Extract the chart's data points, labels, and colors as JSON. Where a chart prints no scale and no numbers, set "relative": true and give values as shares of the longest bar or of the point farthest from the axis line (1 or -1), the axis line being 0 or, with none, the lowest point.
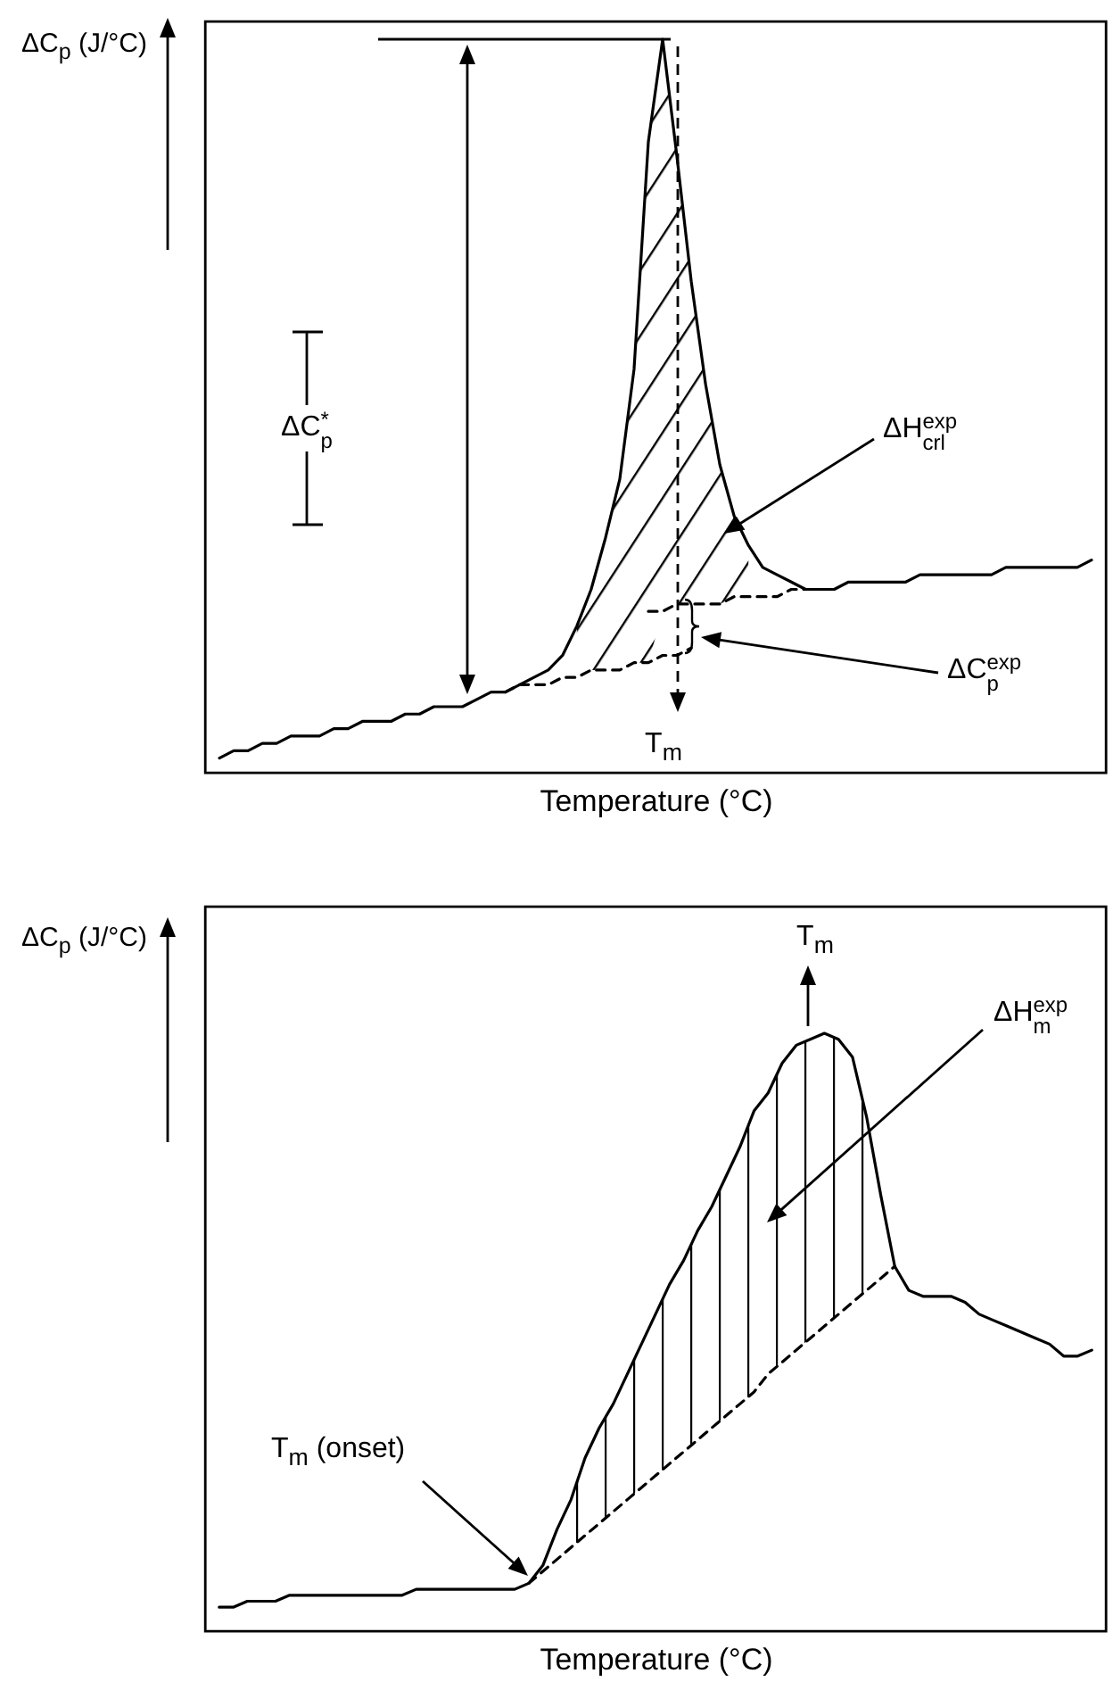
{
  "chart_data": [
    {
      "type": "line",
      "relative": true,
      "tick_labels": false,
      "xlabel": "Temperature (°C)",
      "ylabel": "ΔC$_{p}$ (J/°C)",
      "categories": [
        null,
        null,
        null,
        null,
        null,
        null,
        null,
        null,
        null,
        null,
        null,
        null,
        null,
        null,
        null,
        null,
        null,
        null,
        null,
        null,
        null,
        null,
        null,
        null,
        null,
        null,
        null,
        null,
        null,
        null,
        null,
        null,
        null,
        null,
        null,
        null,
        null,
        null,
        null,
        null,
        null,
        null,
        null,
        null,
        null,
        null,
        null,
        null,
        null,
        null,
        null,
        null,
        null,
        null,
        null,
        null,
        null,
        null,
        null,
        null,
        null,
        null
      ],
      "series": [
        {
          "color": "#000000",
          "line_style": "solid",
          "values": [
            0.02,
            0.03,
            0.03,
            0.04,
            0.04,
            0.05,
            0.05,
            0.05,
            0.06,
            0.06,
            0.07,
            0.07,
            0.07,
            0.08,
            0.08,
            0.09,
            0.09,
            0.09,
            0.1,
            0.11,
            0.11,
            0.12,
            0.13,
            0.14,
            0.16,
            0.2,
            0.25,
            0.32,
            0.4,
            0.55,
            0.86,
            1,
            0.84,
            0.67,
            0.53,
            0.42,
            0.35,
            0.31,
            0.28,
            0.27,
            0.26,
            0.25,
            0.25,
            0.25,
            0.26,
            0.26,
            0.26,
            0.26,
            0.26,
            0.27,
            0.27,
            0.27,
            0.27,
            0.27,
            0.27,
            0.28,
            0.28,
            0.28,
            0.28,
            0.28,
            0.28,
            0.29
          ],
          "lower": [
            null,
            null,
            null,
            null,
            null,
            null,
            null,
            null,
            null,
            null,
            null,
            null,
            null,
            null,
            null,
            null,
            null,
            null,
            null,
            null,
            null,
            null,
            null,
            null,
            null,
            0.13,
            0.14,
            0.14,
            0.14,
            0.15,
            0.15,
            0.22,
            0.23,
            0.23,
            0.23,
            0.23,
            0.24,
            0.24,
            null,
            null,
            null,
            null,
            null,
            null,
            null,
            null,
            null,
            null,
            null,
            null,
            null,
            null,
            null,
            null,
            null,
            null,
            null,
            null,
            null,
            null,
            null,
            null
          ],
          "upper": [
            null,
            null,
            null,
            null,
            null,
            null,
            null,
            null,
            null,
            null,
            null,
            null,
            null,
            null,
            null,
            null,
            null,
            null,
            null,
            null,
            null,
            null,
            null,
            null,
            null,
            0.2,
            0.25,
            0.32,
            0.4,
            0.55,
            0.86,
            1,
            0.84,
            0.67,
            0.53,
            0.42,
            0.35,
            0.31,
            null,
            null,
            null,
            null,
            null,
            null,
            null,
            null,
            null,
            null,
            null,
            null,
            null,
            null,
            null,
            null,
            null,
            null,
            null,
            null,
            null,
            null,
            null,
            null
          ]
        },
        {
          "color": "#000000",
          "line_style": "dashed",
          "values": [
            null,
            null,
            null,
            null,
            null,
            null,
            null,
            null,
            null,
            null,
            null,
            null,
            null,
            null,
            null,
            null,
            null,
            null,
            null,
            null,
            0.11,
            0.12,
            0.12,
            0.12,
            0.13,
            0.13,
            0.14,
            0.14,
            0.14,
            0.15,
            0.15,
            0.16,
            0.16,
            0.17,
            null,
            null,
            null,
            null,
            null,
            null,
            null,
            null,
            null,
            null,
            null,
            null,
            null,
            null,
            null,
            null,
            null,
            null,
            null,
            null,
            null,
            null,
            null,
            null,
            null,
            null,
            null,
            null
          ]
        },
        {
          "color": "#000000",
          "line_style": "dashed",
          "values": [
            null,
            null,
            null,
            null,
            null,
            null,
            null,
            null,
            null,
            null,
            null,
            null,
            null,
            null,
            null,
            null,
            null,
            null,
            null,
            null,
            null,
            null,
            null,
            null,
            null,
            null,
            null,
            null,
            null,
            null,
            0.22,
            0.22,
            0.23,
            0.23,
            0.23,
            0.23,
            0.24,
            0.24,
            0.24,
            0.24,
            0.25,
            0.25,
            0.25,
            null,
            null,
            null,
            null,
            null,
            null,
            null,
            null,
            null,
            null,
            null,
            null,
            null,
            null,
            null,
            null,
            null,
            null,
            null
          ]
        }
      ],
      "annotations": [
        "ΔC$_{p}$$^{*}$",
        "ΔH$_{crl}$$^{exp}$",
        "ΔC$_{p}$$^{exp}$",
        "T$_{m}$"
      ]
    },
    {
      "type": "line",
      "relative": true,
      "tick_labels": false,
      "xlabel": "Temperature (°C)",
      "ylabel": "ΔC$_{p}$ (J/°C)",
      "categories": [
        null,
        null,
        null,
        null,
        null,
        null,
        null,
        null,
        null,
        null,
        null,
        null,
        null,
        null,
        null,
        null,
        null,
        null,
        null,
        null,
        null,
        null,
        null,
        null,
        null,
        null,
        null,
        null,
        null,
        null,
        null,
        null,
        null,
        null,
        null,
        null,
        null,
        null,
        null,
        null,
        null,
        null,
        null,
        null,
        null,
        null,
        null,
        null,
        null,
        null,
        null,
        null,
        null,
        null,
        null,
        null,
        null,
        null,
        null,
        null,
        null,
        null,
        null
      ],
      "series": [
        {
          "color": "#000000",
          "line_style": "solid",
          "values": [
            0.04,
            0.04,
            0.05,
            0.05,
            0.05,
            0.06,
            0.06,
            0.06,
            0.06,
            0.06,
            0.06,
            0.06,
            0.06,
            0.06,
            0.07,
            0.07,
            0.07,
            0.07,
            0.07,
            0.07,
            0.07,
            0.07,
            0.08,
            0.11,
            0.17,
            0.22,
            0.29,
            0.34,
            0.38,
            0.43,
            0.48,
            0.53,
            0.58,
            0.62,
            0.67,
            0.71,
            0.76,
            0.81,
            0.87,
            0.9,
            0.95,
            0.98,
            0.99,
            1,
            0.99,
            0.96,
            0.86,
            0.73,
            0.61,
            0.57,
            0.56,
            0.56,
            0.56,
            0.55,
            0.53,
            0.52,
            0.51,
            0.5,
            0.49,
            0.48,
            0.46,
            0.46,
            0.47
          ],
          "lower": [
            null,
            null,
            null,
            null,
            null,
            null,
            null,
            null,
            null,
            null,
            null,
            null,
            null,
            null,
            null,
            null,
            null,
            null,
            null,
            null,
            null,
            null,
            null,
            null,
            0.12,
            0.14,
            0.16,
            0.18,
            0.2,
            0.22,
            0.24,
            0.26,
            0.28,
            0.3,
            0.32,
            0.34,
            0.36,
            0.38,
            0.4,
            0.43,
            0.45,
            0.47,
            0.49,
            0.51,
            0.53,
            0.55,
            0.57,
            0.59,
            null,
            null,
            null,
            null,
            null,
            null,
            null,
            null,
            null,
            null,
            null,
            null,
            null,
            null,
            null
          ],
          "upper": [
            null,
            null,
            null,
            null,
            null,
            null,
            null,
            null,
            null,
            null,
            null,
            null,
            null,
            null,
            null,
            null,
            null,
            null,
            null,
            null,
            null,
            null,
            null,
            null,
            0.17,
            0.22,
            0.29,
            0.34,
            0.38,
            0.43,
            0.48,
            0.53,
            0.58,
            0.62,
            0.67,
            0.71,
            0.76,
            0.81,
            0.87,
            0.9,
            0.95,
            0.98,
            0.99,
            1,
            0.99,
            0.96,
            0.86,
            0.73,
            null,
            null,
            null,
            null,
            null,
            null,
            null,
            null,
            null,
            null,
            null,
            null,
            null,
            null,
            null
          ]
        },
        {
          "color": "#000000",
          "line_style": "dashed",
          "values": [
            null,
            null,
            null,
            null,
            null,
            null,
            null,
            null,
            null,
            null,
            null,
            null,
            null,
            null,
            null,
            null,
            null,
            null,
            null,
            null,
            null,
            null,
            0.08,
            0.1,
            0.12,
            0.14,
            0.16,
            0.18,
            0.2,
            0.22,
            0.24,
            0.26,
            0.28,
            0.3,
            0.32,
            0.34,
            0.36,
            0.38,
            0.4,
            0.43,
            0.45,
            0.47,
            0.49,
            0.51,
            0.53,
            0.55,
            0.57,
            0.59,
            0.61,
            null,
            null,
            null,
            null,
            null,
            null,
            null,
            null,
            null,
            null,
            null,
            null,
            null,
            null
          ]
        }
      ],
      "annotations": [
        "T$_{m}$",
        "ΔH$_{m}$$^{exp}$",
        "T$_{m}$ (onset)"
      ]
    }
  ]
}
